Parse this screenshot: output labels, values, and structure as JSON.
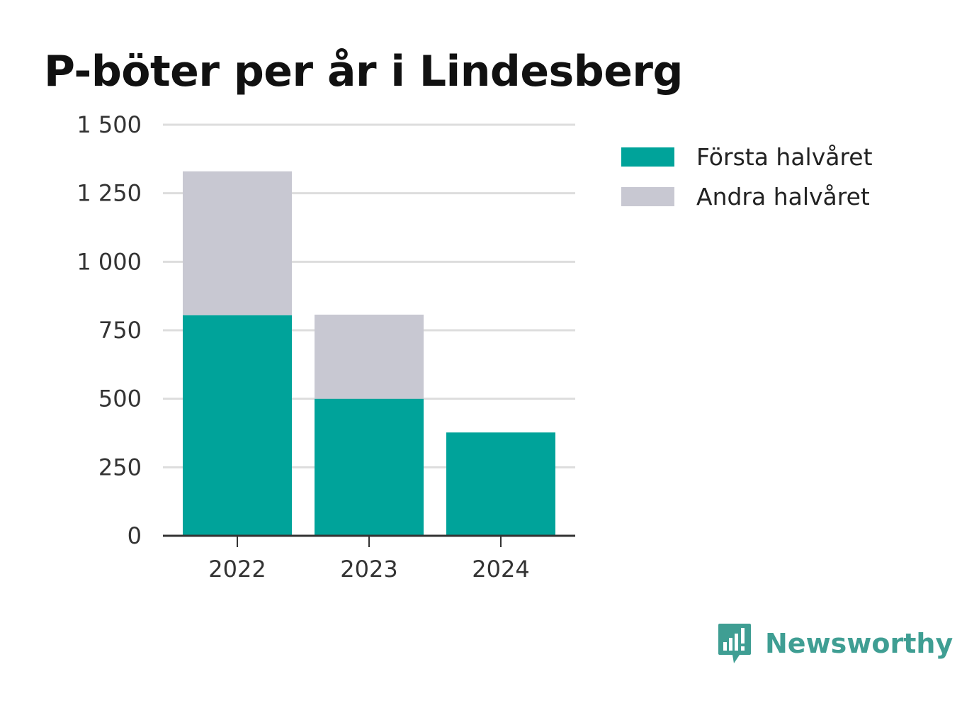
{
  "chart_data": {
    "type": "bar",
    "stacked": true,
    "title": "P-böter per år i Lindesberg",
    "xlabel": "",
    "ylabel": "",
    "categories": [
      "2022",
      "2023",
      "2024"
    ],
    "series": [
      {
        "name": "Första halvåret",
        "values": [
          805,
          500,
          377
        ],
        "color": "#00a39a"
      },
      {
        "name": "Andra halvåret",
        "values": [
          525,
          307,
          0
        ],
        "color": "#c8c8d2"
      }
    ],
    "ylim": [
      0,
      1500
    ],
    "yticks": [
      0,
      250,
      500,
      750,
      1000,
      1250,
      1500
    ],
    "ytick_labels": [
      "0",
      "250",
      "500",
      "750",
      "1 000",
      "1 250",
      "1 500"
    ],
    "grid": true,
    "legend_position": "right"
  },
  "brand": {
    "name": "Newsworthy",
    "icon": "bar-chart-speech-bubble-icon",
    "color": "#3f9e93"
  },
  "colors": {
    "grid": "#dddddd",
    "axis": "#333333",
    "text": "#111111"
  }
}
